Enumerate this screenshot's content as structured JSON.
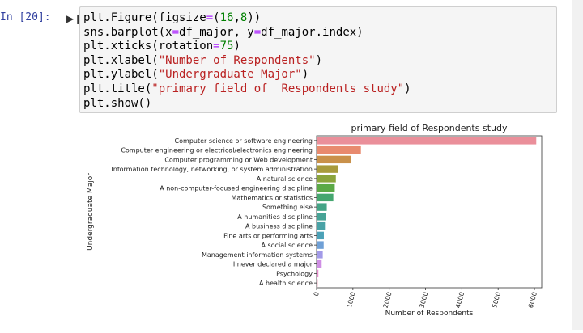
{
  "cell": {
    "prompt": "In [20]:",
    "run_icon": "run-cell-icon",
    "code_lines": [
      [
        {
          "t": "plt.Figure(figsize"
        },
        {
          "t": "=",
          "c": "op"
        },
        {
          "t": "("
        },
        {
          "t": "16",
          "c": "num"
        },
        {
          "t": ","
        },
        {
          "t": "8",
          "c": "num"
        },
        {
          "t": "))"
        }
      ],
      [
        {
          "t": "sns.barplot(x"
        },
        {
          "t": "=",
          "c": "op"
        },
        {
          "t": "df_major, y"
        },
        {
          "t": "=",
          "c": "op"
        },
        {
          "t": "df_major.index)"
        }
      ],
      [
        {
          "t": "plt.xticks(rotation"
        },
        {
          "t": "=",
          "c": "op"
        },
        {
          "t": "75",
          "c": "num"
        },
        {
          "t": ")"
        }
      ],
      [
        {
          "t": "plt.xlabel("
        },
        {
          "t": "\"Number of Respondents\"",
          "c": "str"
        },
        {
          "t": ")"
        }
      ],
      [
        {
          "t": "plt.ylabel("
        },
        {
          "t": "\"Undergraduate Major\"",
          "c": "str"
        },
        {
          "t": ")"
        }
      ],
      [
        {
          "t": "plt.title("
        },
        {
          "t": "\"primary field of  Respondents study\"",
          "c": "str"
        },
        {
          "t": ")"
        }
      ],
      [
        {
          "t": "plt.show()"
        }
      ]
    ]
  },
  "chart_data": {
    "type": "bar",
    "orientation": "horizontal",
    "title": "primary field of  Respondents study",
    "xlabel": "Number of Respondents",
    "ylabel": "Undergraduate Major",
    "xlim": [
      0,
      6200
    ],
    "xticks": [
      0,
      1000,
      2000,
      3000,
      4000,
      5000,
      6000
    ],
    "categories": [
      "Computer science or software engineering",
      "Computer engineering or electrical/electronics engineering",
      "Computer programming or Web development",
      "Information technology, networking, or system administration",
      "A natural science",
      "A non-computer-focused engineering discipline",
      "Mathematics or statistics",
      "Something else",
      "A humanities discipline",
      "A business discipline",
      "Fine arts or performing arts",
      "A social science",
      "Management information systems",
      "I never declared a major",
      "Psychology",
      "A health science"
    ],
    "values": [
      6050,
      1220,
      950,
      580,
      530,
      500,
      460,
      280,
      260,
      230,
      200,
      195,
      170,
      140,
      50,
      30
    ],
    "colors": [
      "#ea8f9a",
      "#e88a6e",
      "#c9914a",
      "#a89b3c",
      "#8ba43c",
      "#5ba946",
      "#45a66f",
      "#44a486",
      "#47a396",
      "#49a2a6",
      "#4ba1b7",
      "#6fa0d6",
      "#a29ae8",
      "#cf8ee4",
      "#e88acd",
      "#e98dac"
    ],
    "grid": false,
    "legend": "none"
  }
}
